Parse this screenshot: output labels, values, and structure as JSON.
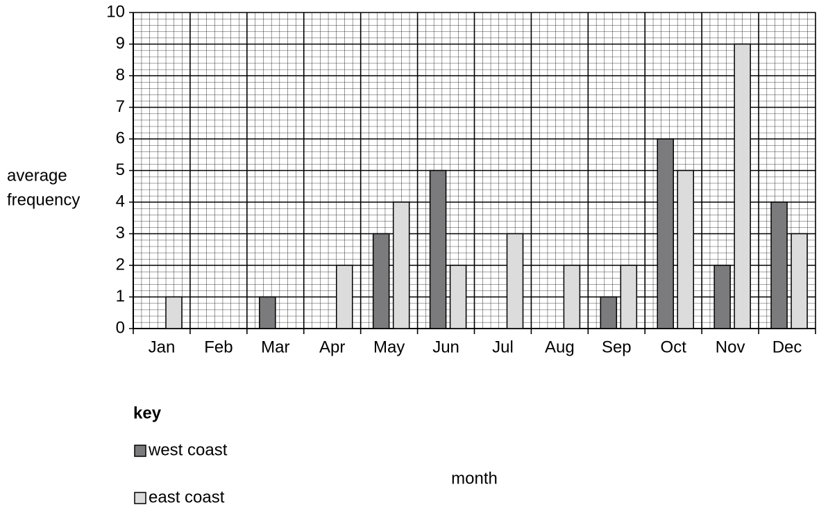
{
  "chart_data": {
    "type": "bar",
    "y_label": [
      "average",
      "frequency"
    ],
    "x_label": "month",
    "legend_title": "key",
    "categories": [
      "Jan",
      "Feb",
      "Mar",
      "Apr",
      "May",
      "Jun",
      "Jul",
      "Aug",
      "Sep",
      "Oct",
      "Nov",
      "Dec"
    ],
    "series": [
      {
        "name": "west coast",
        "color": "#7b7b7d",
        "values": [
          0,
          0,
          1,
          0,
          3,
          5,
          0,
          0,
          1,
          6,
          2,
          4
        ]
      },
      {
        "name": "east coast",
        "color": "#dcdcdc",
        "values": [
          1,
          0,
          0,
          2,
          4,
          2,
          3,
          2,
          2,
          5,
          9,
          3
        ]
      }
    ],
    "ylim": [
      0,
      10
    ],
    "yticks": [
      0,
      1,
      2,
      3,
      4,
      5,
      6,
      7,
      8,
      9,
      10
    ],
    "grid": true
  }
}
